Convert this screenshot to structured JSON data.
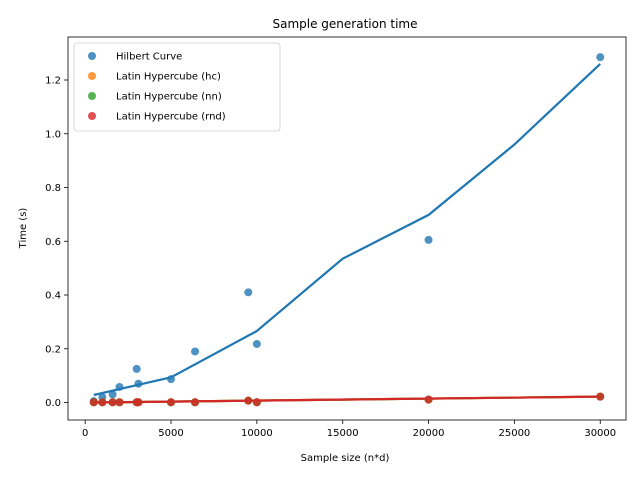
{
  "chart_data": {
    "type": "scatter",
    "title": "Sample generation time",
    "xlabel": "Sample size (n*d)",
    "ylabel": "Time (s)",
    "xlim": [
      -1000,
      31500
    ],
    "ylim": [
      -0.065,
      1.36
    ],
    "xticks": [
      0,
      5000,
      10000,
      15000,
      20000,
      25000,
      30000
    ],
    "yticks": [
      0.0,
      0.2,
      0.4,
      0.6,
      0.8,
      1.0,
      1.2
    ],
    "x_tick_labels": [
      "0",
      "5000",
      "10000",
      "15000",
      "20000",
      "25000",
      "30000"
    ],
    "y_tick_labels": [
      "0.0",
      "0.2",
      "0.4",
      "0.6",
      "0.8",
      "1.0",
      "1.2"
    ],
    "legend_position": "top-left",
    "grid": false,
    "series": [
      {
        "name": "Hilbert Curve",
        "color": "#1f77b4",
        "points": [
          [
            500,
            0.005
          ],
          [
            1000,
            0.02
          ],
          [
            1600,
            0.03
          ],
          [
            2000,
            0.058
          ],
          [
            3000,
            0.125
          ],
          [
            3100,
            0.07
          ],
          [
            5000,
            0.087
          ],
          [
            6400,
            0.19
          ],
          [
            9500,
            0.41
          ],
          [
            10000,
            0.218
          ],
          [
            20000,
            0.605
          ],
          [
            30000,
            1.285
          ]
        ],
        "fit": [
          [
            500,
            0.028
          ],
          [
            5000,
            0.094
          ],
          [
            10000,
            0.266
          ],
          [
            15000,
            0.535
          ],
          [
            20000,
            0.698
          ],
          [
            25000,
            0.96
          ],
          [
            30000,
            1.26
          ]
        ]
      },
      {
        "name": "Latin Hypercube (hc)",
        "color": "#ff7f0e",
        "points": [
          [
            500,
            0.001
          ],
          [
            1000,
            0.001
          ],
          [
            1600,
            0.001
          ],
          [
            2000,
            0.001
          ],
          [
            3000,
            0.001
          ],
          [
            3100,
            0.001
          ],
          [
            5000,
            0.001
          ],
          [
            6400,
            0.001
          ],
          [
            9500,
            0.007
          ],
          [
            10000,
            0.001
          ],
          [
            20000,
            0.011
          ],
          [
            30000,
            0.022
          ]
        ],
        "fit": [
          [
            500,
            0.0
          ],
          [
            30000,
            0.022
          ]
        ]
      },
      {
        "name": "Latin Hypercube (nn)",
        "color": "#2ca02c",
        "points": [
          [
            500,
            0.001
          ],
          [
            1000,
            0.001
          ],
          [
            1600,
            0.001
          ],
          [
            2000,
            0.001
          ],
          [
            3000,
            0.001
          ],
          [
            3100,
            0.001
          ],
          [
            5000,
            0.001
          ],
          [
            6400,
            0.001
          ],
          [
            9500,
            0.007
          ],
          [
            10000,
            0.001
          ],
          [
            20000,
            0.011
          ],
          [
            30000,
            0.022
          ]
        ],
        "fit": [
          [
            500,
            0.0
          ],
          [
            30000,
            0.022
          ]
        ]
      },
      {
        "name": "Latin Hypercube (rnd)",
        "color": "#d62728",
        "points": [
          [
            500,
            0.001
          ],
          [
            1000,
            0.001
          ],
          [
            1600,
            0.001
          ],
          [
            2000,
            0.001
          ],
          [
            3000,
            0.001
          ],
          [
            3100,
            0.001
          ],
          [
            5000,
            0.001
          ],
          [
            6400,
            0.001
          ],
          [
            9500,
            0.007
          ],
          [
            10000,
            0.001
          ],
          [
            20000,
            0.011
          ],
          [
            30000,
            0.022
          ]
        ],
        "fit": [
          [
            500,
            0.0
          ],
          [
            30000,
            0.022
          ]
        ]
      }
    ]
  }
}
